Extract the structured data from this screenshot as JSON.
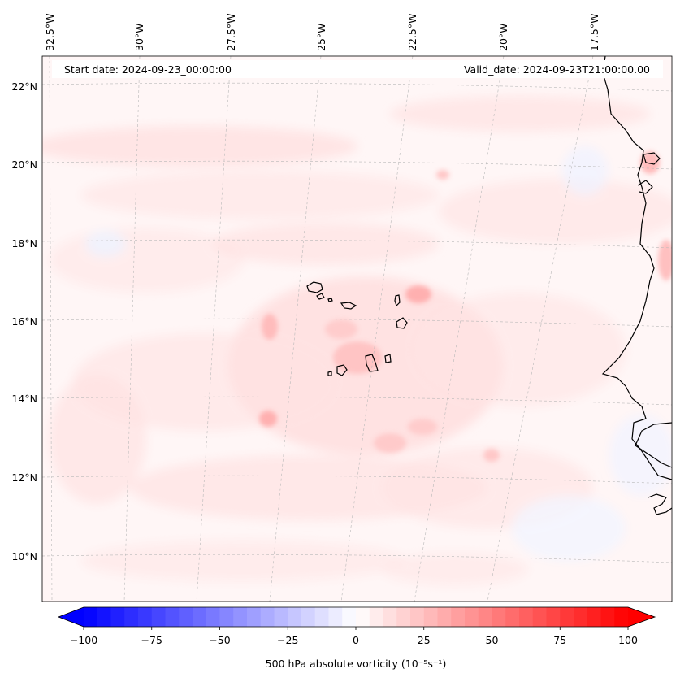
{
  "annotations": {
    "start_date": "Start date: 2024-09-23_00:00:00",
    "valid_date": "Valid_date: 2024-09-23T21:00:00.00"
  },
  "lon_labels": [
    "32.5°W",
    "30°W",
    "27.5°W",
    "25°W",
    "22.5°W",
    "20°W",
    "17.5°W"
  ],
  "lat_labels": [
    "22°N",
    "20°N",
    "18°N",
    "16°N",
    "14°N",
    "12°N",
    "10°N"
  ],
  "colorbar": {
    "label": "500 hPa absolute vorticity (10⁻⁵s⁻¹)",
    "ticks": [
      "−100",
      "−75",
      "−50",
      "−25",
      "0",
      "25",
      "50",
      "75",
      "100"
    ],
    "min": -100,
    "max": 100,
    "step": 5,
    "color_negative": "#0000ff",
    "color_zero": "#ffffff",
    "color_positive": "#ff0000"
  },
  "colors": {
    "background_field": "#fff5f5",
    "coastline": "#000000",
    "gridline": "#b0b0b0"
  }
}
